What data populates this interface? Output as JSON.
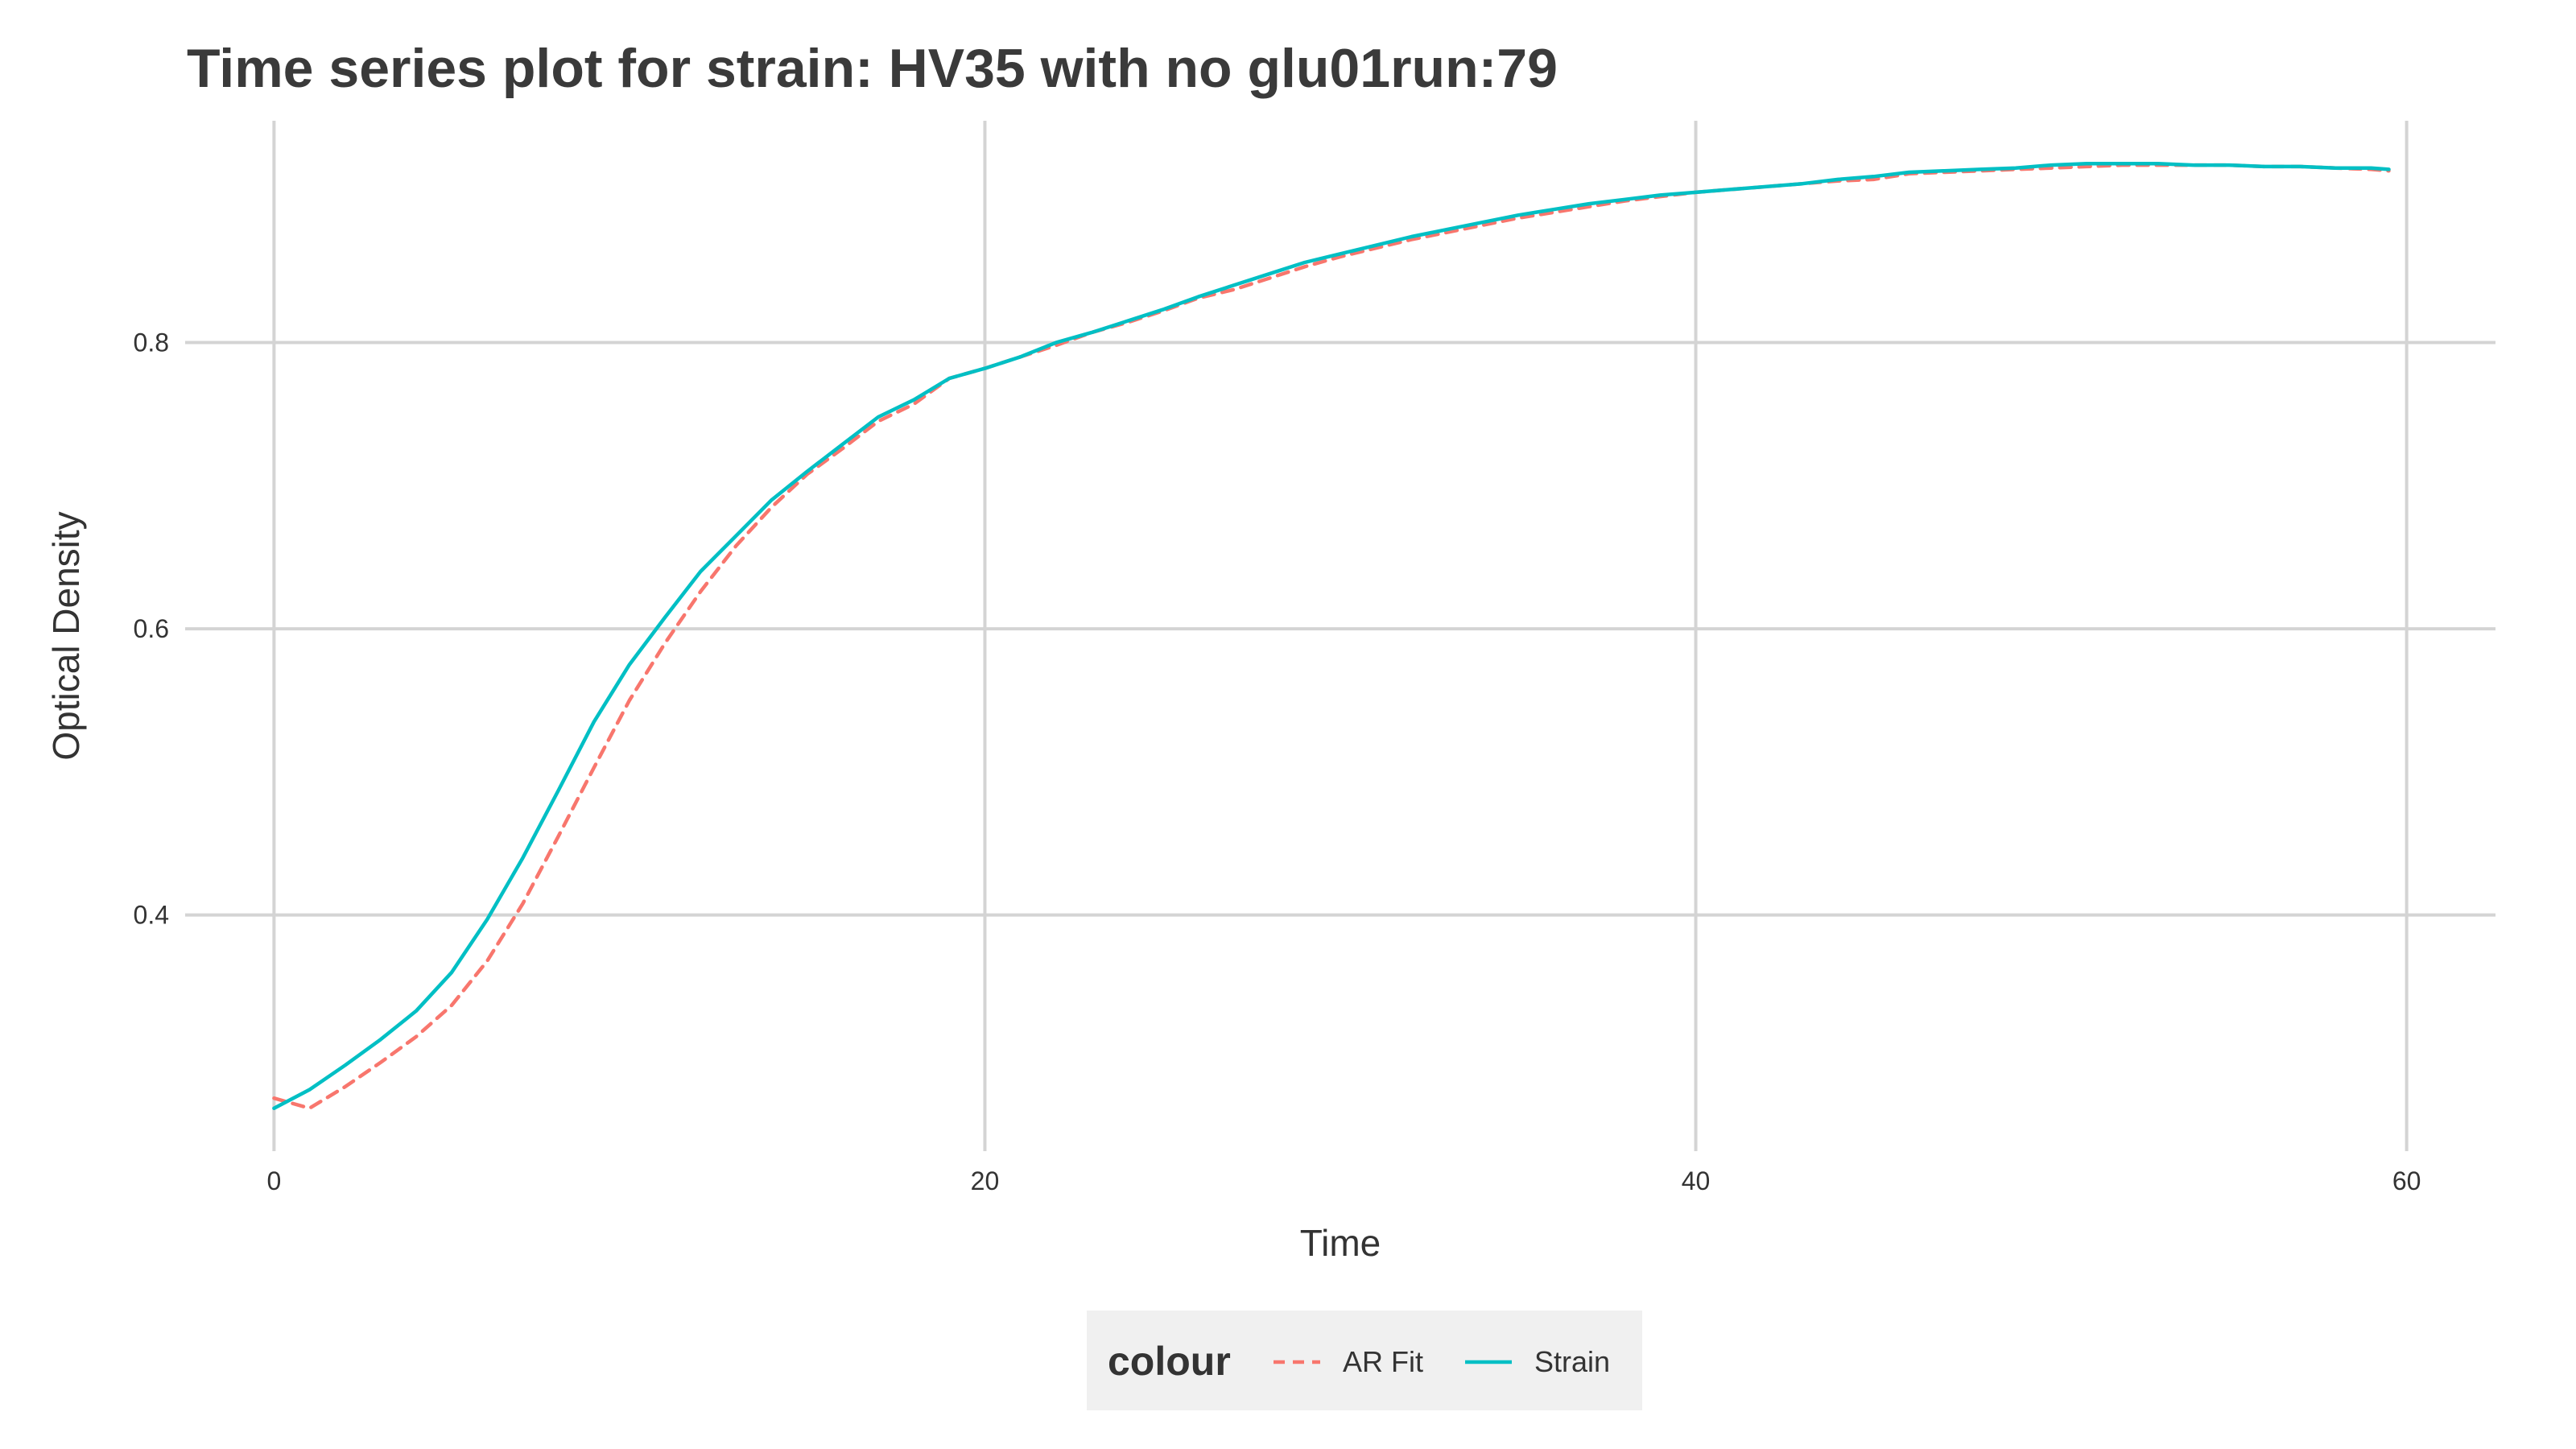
{
  "chart_data": {
    "type": "line",
    "title": "Time series plot for strain: HV35 with no glu01run:79",
    "xlabel": "Time",
    "ylabel": "Optical Density",
    "xlim": [
      -2.5,
      62.5
    ],
    "ylim": [
      0.235,
      0.955
    ],
    "x_ticks": [
      0,
      20,
      40,
      60
    ],
    "x_tick_labels": [
      "0",
      "20",
      "40",
      "60"
    ],
    "y_ticks": [
      0.4,
      0.6,
      0.8
    ],
    "y_tick_labels": [
      "0.4",
      "0.6",
      "0.8"
    ],
    "grid": true,
    "legend": {
      "title": "colour",
      "placement": "bottom",
      "entries": [
        "AR Fit",
        "Strain"
      ]
    },
    "x": [
      0,
      1,
      2,
      3,
      4,
      5,
      6,
      7,
      8,
      9,
      10,
      11,
      12,
      13,
      14,
      15,
      16,
      17,
      18,
      19,
      20,
      21,
      22,
      23,
      24,
      25,
      26,
      27,
      28,
      29,
      30,
      31,
      32,
      33,
      34,
      35,
      36,
      37,
      38,
      39,
      40,
      41,
      42,
      43,
      44,
      45,
      46,
      47,
      48,
      49,
      50,
      51,
      52,
      53,
      54,
      55,
      56,
      57,
      58,
      59,
      59.5
    ],
    "series": [
      {
        "name": "AR Fit",
        "color": "#F8766D",
        "dash": "dashed",
        "values": [
          0.272,
          0.265,
          0.28,
          0.297,
          0.315,
          0.337,
          0.368,
          0.408,
          0.455,
          0.503,
          0.55,
          0.59,
          0.626,
          0.658,
          0.685,
          0.708,
          0.726,
          0.745,
          0.757,
          0.775,
          0.782,
          0.79,
          0.798,
          0.807,
          0.814,
          0.822,
          0.831,
          0.837,
          0.845,
          0.853,
          0.86,
          0.866,
          0.872,
          0.877,
          0.882,
          0.887,
          0.891,
          0.895,
          0.899,
          0.902,
          0.905,
          0.907,
          0.909,
          0.911,
          0.913,
          0.914,
          0.918,
          0.919,
          0.92,
          0.921,
          0.922,
          0.923,
          0.924,
          0.924,
          0.924,
          0.924,
          0.923,
          0.923,
          0.922,
          0.921,
          0.92
        ]
      },
      {
        "name": "Strain",
        "color": "#00BFC4",
        "dash": "solid",
        "values": [
          0.265,
          0.278,
          0.295,
          0.313,
          0.333,
          0.36,
          0.397,
          0.44,
          0.487,
          0.535,
          0.575,
          0.608,
          0.64,
          0.665,
          0.69,
          0.71,
          0.729,
          0.748,
          0.76,
          0.775,
          0.782,
          0.79,
          0.8,
          0.807,
          0.815,
          0.823,
          0.832,
          0.84,
          0.848,
          0.856,
          0.862,
          0.868,
          0.874,
          0.879,
          0.884,
          0.889,
          0.893,
          0.897,
          0.9,
          0.903,
          0.905,
          0.907,
          0.909,
          0.911,
          0.914,
          0.916,
          0.919,
          0.92,
          0.921,
          0.922,
          0.924,
          0.925,
          0.925,
          0.925,
          0.924,
          0.924,
          0.923,
          0.923,
          0.922,
          0.922,
          0.921
        ]
      }
    ]
  }
}
